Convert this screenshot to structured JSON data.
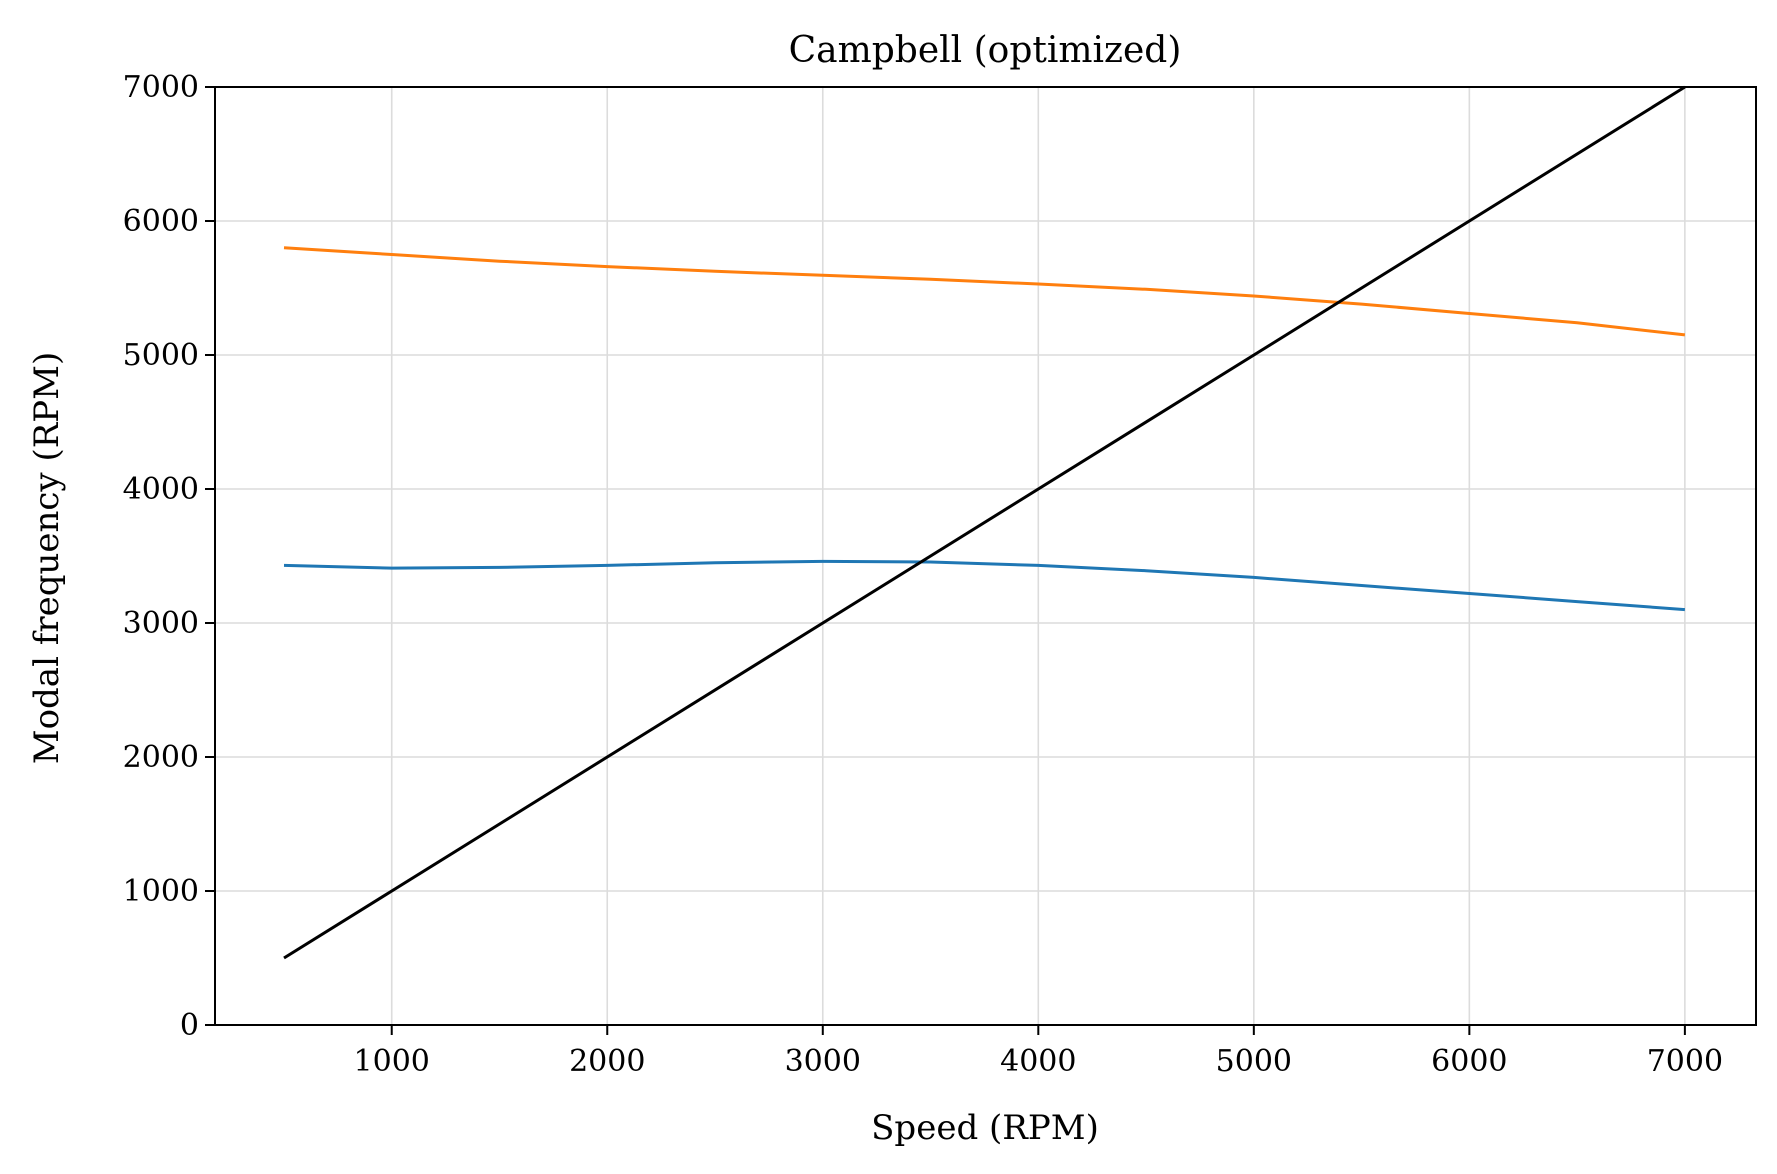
{
  "chart_data": {
    "type": "line",
    "title": "Campbell (optimized)",
    "xlabel": "Speed (RPM)",
    "ylabel": "Modal frequency (RPM)",
    "xlim": [
      180,
      7330
    ],
    "ylim": [
      0,
      7000
    ],
    "xticks": [
      1000,
      2000,
      3000,
      4000,
      5000,
      6000,
      7000
    ],
    "yticks": [
      0,
      1000,
      2000,
      3000,
      4000,
      5000,
      6000,
      7000
    ],
    "grid": true,
    "series": [
      {
        "color": "#1f77b4",
        "x": [
          500,
          1000,
          1500,
          2000,
          2500,
          3000,
          3500,
          4000,
          4500,
          5000,
          5500,
          6000,
          6500,
          7000
        ],
        "y": [
          3430,
          3410,
          3415,
          3430,
          3450,
          3460,
          3455,
          3430,
          3390,
          3340,
          3280,
          3220,
          3160,
          3100
        ]
      },
      {
        "color": "#ff7f0e",
        "x": [
          500,
          1000,
          1500,
          2000,
          2500,
          3000,
          3500,
          4000,
          4500,
          5000,
          5500,
          6000,
          6500,
          7000
        ],
        "y": [
          5800,
          5750,
          5700,
          5660,
          5625,
          5595,
          5565,
          5530,
          5490,
          5440,
          5380,
          5310,
          5240,
          5150
        ]
      },
      {
        "color": "#000000",
        "x": [
          500,
          7000
        ],
        "y": [
          500,
          7000
        ]
      }
    ]
  }
}
